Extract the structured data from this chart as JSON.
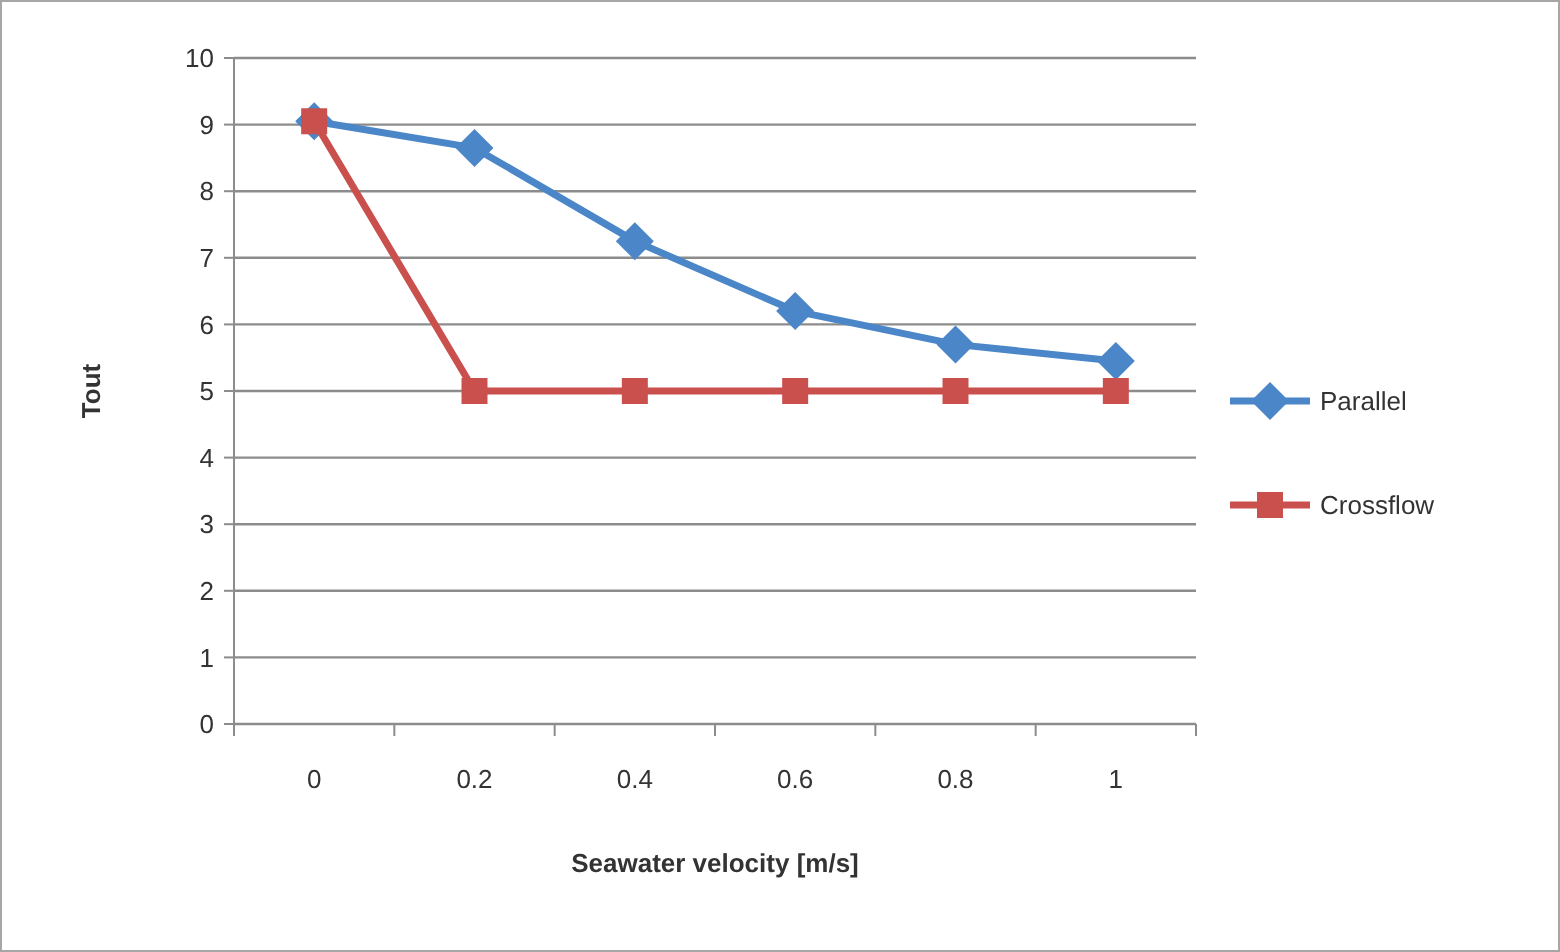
{
  "chart_data": {
    "type": "line",
    "xlabel": "Seawater velocity [m/s]",
    "ylabel": "Tout",
    "categories": [
      "0",
      "0.2",
      "0.4",
      "0.6",
      "0.8",
      "1"
    ],
    "series": [
      {
        "name": "Parallel",
        "color": "#4a86c8",
        "marker": "diamond",
        "values": [
          9.05,
          8.65,
          7.25,
          6.2,
          5.7,
          5.45
        ]
      },
      {
        "name": "Crossflow",
        "color": "#c9504d",
        "marker": "square",
        "values": [
          9.05,
          5,
          5,
          5,
          5,
          5
        ]
      }
    ],
    "ylim": [
      0,
      10
    ],
    "yticks": [
      0,
      1,
      2,
      3,
      4,
      5,
      6,
      7,
      8,
      9,
      10
    ],
    "grid": "y",
    "legend": "right"
  }
}
